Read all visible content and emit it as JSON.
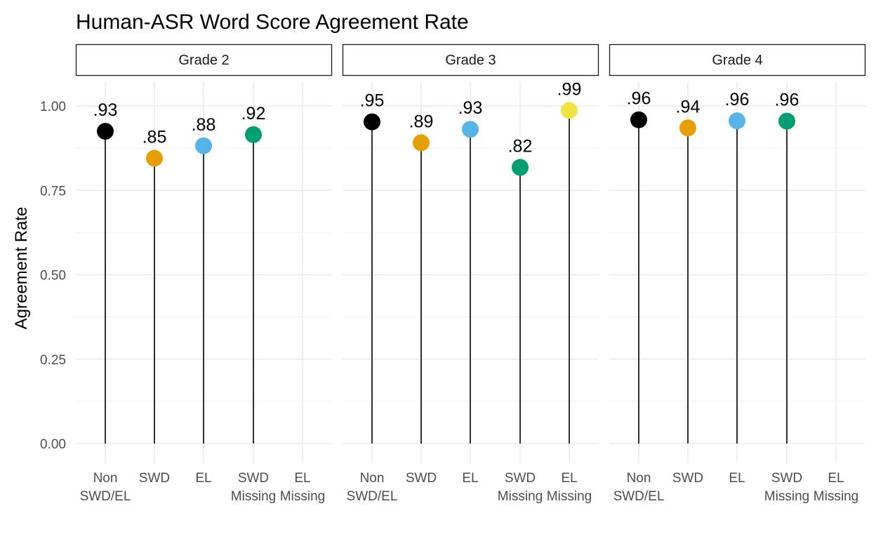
{
  "chart_data": {
    "type": "lollipop",
    "title": "Human-ASR Word Score Agreement Rate",
    "ylabel": "Agreement Rate",
    "xlabel": "",
    "ylim": [
      0,
      1.1
    ],
    "yticks": [
      0,
      0.25,
      0.5,
      0.75,
      1.0
    ],
    "ytick_labels": [
      "0.00",
      "0.25",
      "0.50",
      "0.75",
      "1.00"
    ],
    "grid": true,
    "legend": "none",
    "categories": [
      "Non SWD/EL",
      "SWD",
      "EL",
      "SWD Missing",
      "EL Missing"
    ],
    "category_label_lines": [
      [
        "Non",
        "SWD/EL"
      ],
      [
        "SWD"
      ],
      [
        "EL"
      ],
      [
        "SWD",
        "Missing"
      ],
      [
        "EL",
        "Missing"
      ]
    ],
    "category_colors": [
      "#000000",
      "#E69F00",
      "#56B4E9",
      "#009E73",
      "#F0E442"
    ],
    "panels": [
      {
        "facet": "Grade 2",
        "values": [
          0.925,
          0.845,
          0.882,
          0.915,
          null
        ],
        "labels": [
          ".93",
          ".85",
          ".88",
          ".92",
          ""
        ]
      },
      {
        "facet": "Grade 3",
        "values": [
          0.953,
          0.891,
          0.931,
          0.818,
          0.987
        ],
        "labels": [
          ".95",
          ".89",
          ".93",
          ".82",
          ".99"
        ]
      },
      {
        "facet": "Grade 4",
        "values": [
          0.959,
          0.935,
          0.956,
          0.955,
          null
        ],
        "labels": [
          ".96",
          ".94",
          ".96",
          ".96",
          ""
        ]
      }
    ]
  }
}
